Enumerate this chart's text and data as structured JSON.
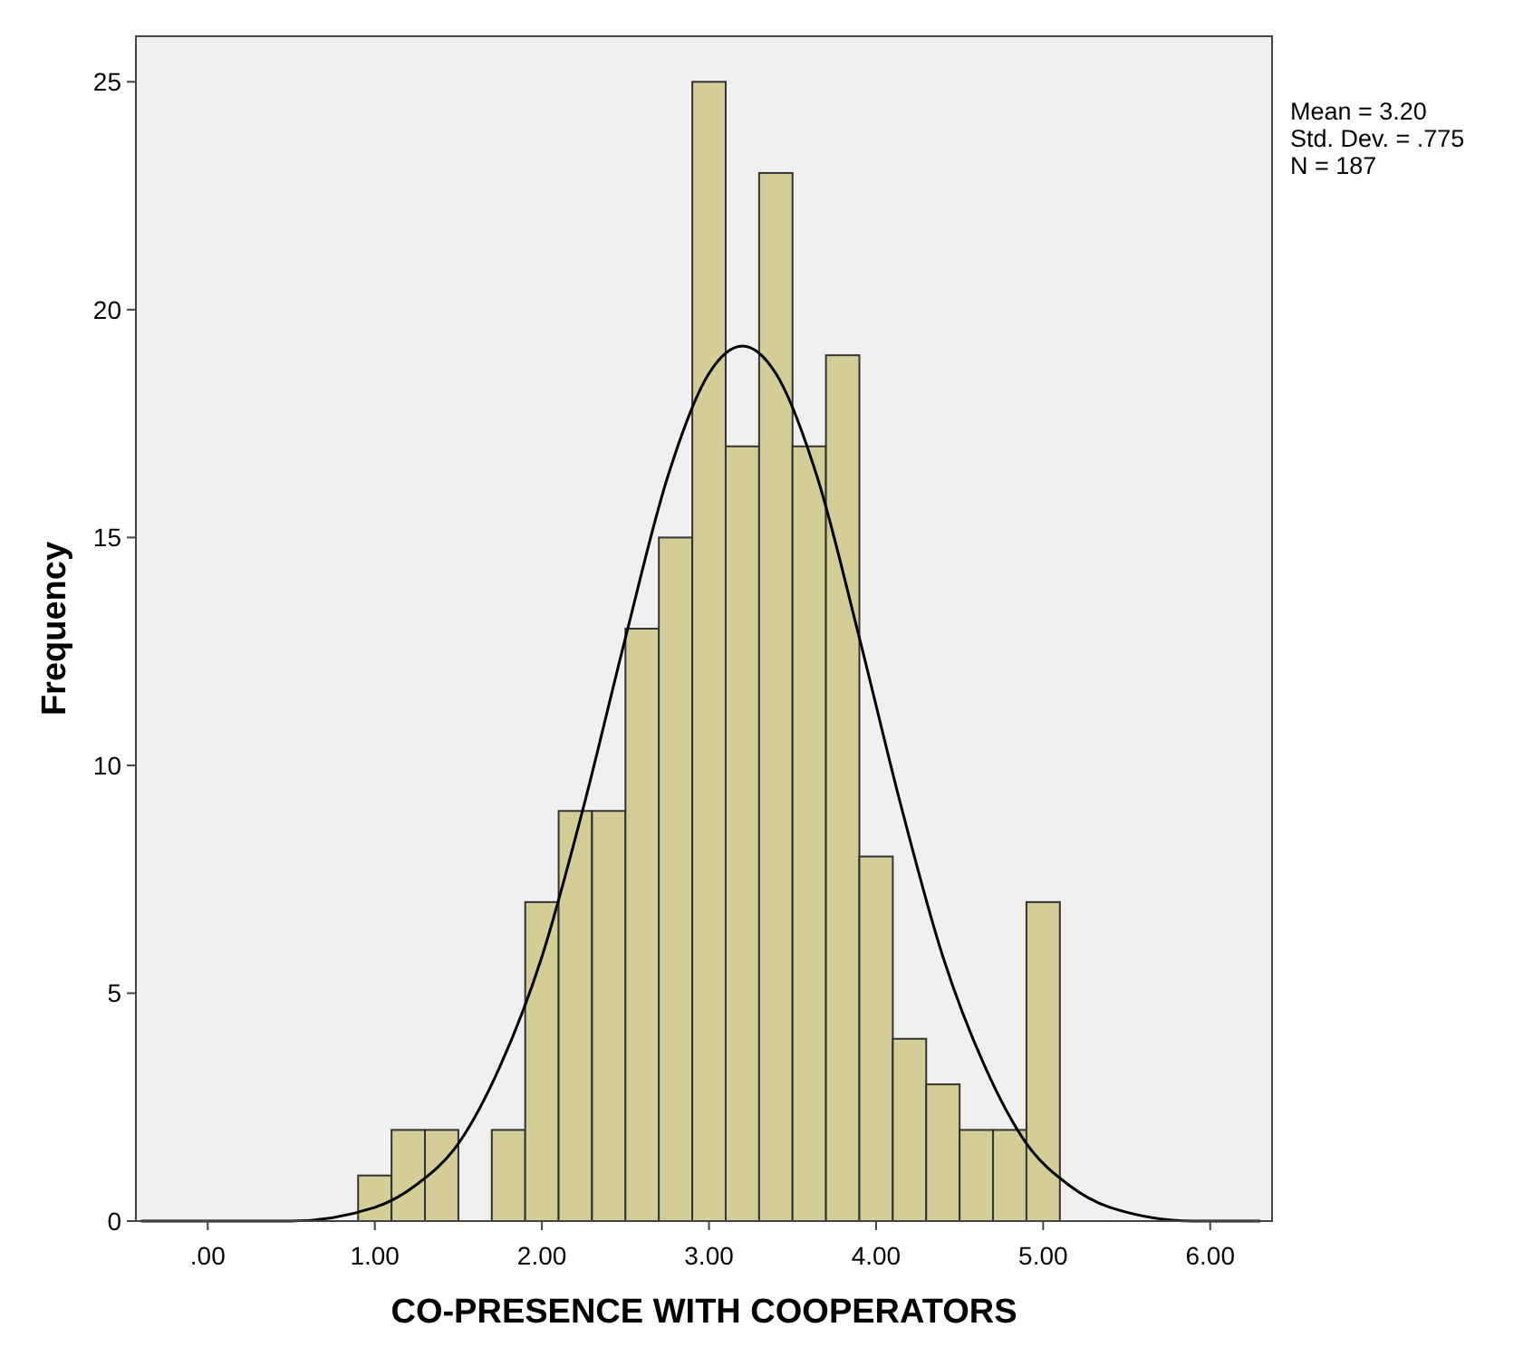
{
  "chart_data": {
    "type": "histogram",
    "xlabel": "CO-PRESENCE WITH COOPERATORS",
    "ylabel": "Frequency",
    "bins": [
      0.9,
      1.1,
      1.3,
      1.5,
      1.7,
      1.9,
      2.1,
      2.3,
      2.5,
      2.7,
      2.9,
      3.1,
      3.3,
      3.5,
      3.7,
      3.9,
      4.1,
      4.3,
      4.5,
      4.7,
      4.9,
      5.1
    ],
    "values": [
      1,
      2,
      2,
      0,
      2,
      7,
      9,
      9,
      13,
      15,
      25,
      17,
      23,
      17,
      19,
      8,
      4,
      3,
      2,
      2,
      7
    ],
    "color": "#d3ce97",
    "series": [
      {
        "type": "line",
        "color": "#000000",
        "x": [
          -0.4,
          0,
          0.5,
          1,
          1.25,
          1.5,
          1.75,
          2,
          2.25,
          2.5,
          2.75,
          3,
          3.2,
          3.4,
          3.65,
          3.9,
          4.15,
          4.4,
          4.65,
          4.9,
          5.15,
          5.4,
          5.9,
          6.3
        ],
        "values": [
          0,
          0,
          0,
          0.3,
          0.8,
          1.7,
          3.4,
          5.8,
          9.1,
          12.8,
          16.3,
          18.6,
          19.2,
          18.6,
          16.3,
          12.8,
          9.1,
          5.8,
          3.4,
          1.7,
          0.8,
          0.3,
          0,
          0
        ]
      }
    ],
    "xlim": [
      -0.43,
      6.37
    ],
    "ylim": [
      0,
      26
    ],
    "xticks": [
      {
        "value": 0,
        "label": ".00"
      },
      {
        "value": 1,
        "label": "1.00"
      },
      {
        "value": 2,
        "label": "2.00"
      },
      {
        "value": 3,
        "label": "3.00"
      },
      {
        "value": 4,
        "label": "4.00"
      },
      {
        "value": 5,
        "label": "5.00"
      },
      {
        "value": 6,
        "label": "6.00"
      }
    ],
    "yticks": [
      0,
      5,
      10,
      15,
      20,
      25
    ],
    "annotations": [
      "Mean = 3.20",
      "Std. Dev. = .775",
      "N = 187"
    ]
  }
}
